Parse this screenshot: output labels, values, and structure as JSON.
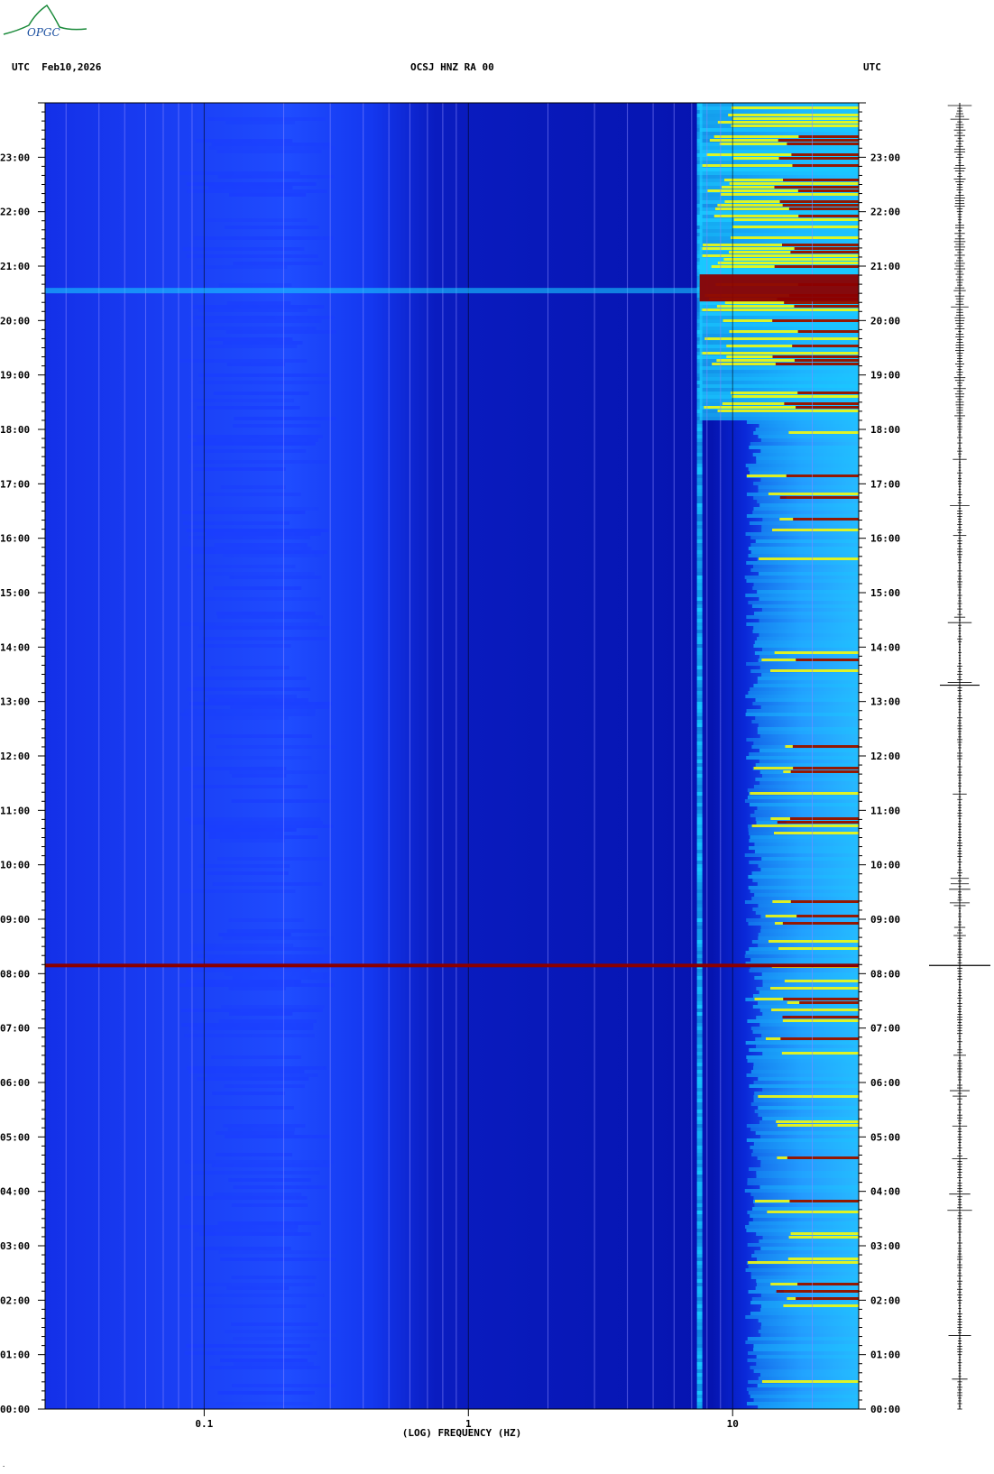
{
  "logo": {
    "text": "OPGC",
    "icon": "opgc-volcano-logo-icon"
  },
  "header": {
    "left": "UTC  Feb10,2026",
    "center": "OCSJ HNZ RA 00",
    "right": "UTC"
  },
  "chart_data": {
    "type": "heatmap",
    "title": "OCSJ HNZ RA 00",
    "date": "Feb10,2026",
    "xlabel": "(LOG) FREQUENCY (HZ)",
    "ylabel": "",
    "x_scale": "log",
    "xlim": [
      0.025,
      30
    ],
    "x_ticks": [
      {
        "value": 0.1,
        "label": "0.1"
      },
      {
        "value": 1,
        "label": "1"
      },
      {
        "value": 10,
        "label": "10"
      }
    ],
    "y_label_left": "UTC",
    "y_label_right": "UTC",
    "ylim_hours": [
      0,
      24
    ],
    "y_ticks": [
      {
        "hour": 0,
        "label": "00:00"
      },
      {
        "hour": 1,
        "label": "01:00"
      },
      {
        "hour": 2,
        "label": "02:00"
      },
      {
        "hour": 3,
        "label": "03:00"
      },
      {
        "hour": 4,
        "label": "04:00"
      },
      {
        "hour": 5,
        "label": "05:00"
      },
      {
        "hour": 6,
        "label": "06:00"
      },
      {
        "hour": 7,
        "label": "07:00"
      },
      {
        "hour": 8,
        "label": "08:00"
      },
      {
        "hour": 9,
        "label": "09:00"
      },
      {
        "hour": 10,
        "label": "10:00"
      },
      {
        "hour": 11,
        "label": "11:00"
      },
      {
        "hour": 12,
        "label": "12:00"
      },
      {
        "hour": 13,
        "label": "13:00"
      },
      {
        "hour": 14,
        "label": "14:00"
      },
      {
        "hour": 15,
        "label": "15:00"
      },
      {
        "hour": 16,
        "label": "16:00"
      },
      {
        "hour": 17,
        "label": "17:00"
      },
      {
        "hour": 18,
        "label": "18:00"
      },
      {
        "hour": 19,
        "label": "19:00"
      },
      {
        "hour": 20,
        "label": "20:00"
      },
      {
        "hour": 21,
        "label": "21:00"
      },
      {
        "hour": 22,
        "label": "22:00"
      },
      {
        "hour": 23,
        "label": "23:00"
      }
    ],
    "grid_frequencies": [
      0.03,
      0.04,
      0.05,
      0.06,
      0.07,
      0.08,
      0.09,
      0.2,
      0.3,
      0.4,
      0.5,
      0.6,
      0.7,
      0.8,
      0.9,
      2,
      3,
      4,
      5,
      6,
      7,
      8,
      9,
      20
    ],
    "colormap": [
      "#0000a0",
      "#1a3cff",
      "#19c8ff",
      "#ffff00",
      "#ff8000",
      "#8b0000"
    ],
    "events": [
      {
        "hour": 8.15,
        "type": "broadband-line",
        "intensity": "high"
      },
      {
        "hour": 20.55,
        "type": "strong-event",
        "intensity": "high"
      }
    ],
    "trace": {
      "description_visible": "seismic trace column",
      "big_spikes_hours": [
        8.15,
        13.3
      ]
    }
  }
}
